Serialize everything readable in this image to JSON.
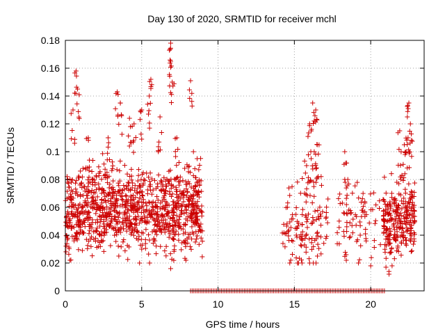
{
  "chart_data": {
    "type": "scatter",
    "title": "Day 130 of 2020, SRMTID for receiver mchl",
    "xlabel": "GPS time / hours",
    "ylabel": "SRMTID / TECUs",
    "xlim": [
      0,
      23.5
    ],
    "ylim": [
      0,
      0.18
    ],
    "x_ticks": [
      0,
      5,
      10,
      15,
      20
    ],
    "x_tick_labels": [
      "0",
      "5",
      "10",
      "15",
      "20"
    ],
    "y_ticks": [
      0,
      0.02,
      0.04,
      0.06,
      0.08,
      0.1,
      0.12,
      0.14,
      0.16,
      0.18
    ],
    "y_tick_labels": [
      "0",
      "0.02",
      "0.04",
      "0.06",
      "0.08",
      "0.1",
      "0.12",
      "0.14",
      "0.16",
      "0.18"
    ],
    "grid": true,
    "marker": "+",
    "marker_color": "#cc0000",
    "series": [
      {
        "name": "SRMTID",
        "segments": [
          {
            "x_range": [
              0.0,
              9.0
            ],
            "samples": 1100,
            "baseline": 0.058,
            "spread": 0.014,
            "spikes": [
              [
                0.7,
                0.158
              ],
              [
                0.5,
                0.13
              ],
              [
                0.8,
                0.145
              ],
              [
                3.4,
                0.143
              ],
              [
                3.6,
                0.135
              ],
              [
                4.2,
                0.124
              ],
              [
                5.0,
                0.13
              ],
              [
                5.6,
                0.152
              ],
              [
                5.5,
                0.14
              ],
              [
                6.2,
                0.125
              ],
              [
                6.9,
                0.178
              ],
              [
                6.9,
                0.165
              ],
              [
                7.0,
                0.15
              ],
              [
                8.2,
                0.151
              ],
              [
                7.3,
                0.11
              ],
              [
                1.5,
                0.11
              ],
              [
                2.8,
                0.11
              ],
              [
                4.5,
                0.12
              ]
            ],
            "lows": [
              [
                0.3,
                0.022
              ],
              [
                3.5,
                0.025
              ],
              [
                6.9,
                0.016
              ],
              [
                7.9,
                0.022
              ],
              [
                5.0,
                0.03
              ]
            ]
          },
          {
            "x_range": [
              14.2,
              17.2
            ],
            "samples": 120,
            "baseline": 0.045,
            "spread": 0.015,
            "spikes": [
              [
                16.2,
                0.135
              ],
              [
                16.4,
                0.13
              ],
              [
                16.0,
                0.12
              ],
              [
                16.5,
                0.105
              ],
              [
                16.3,
                0.1
              ],
              [
                15.8,
                0.09
              ],
              [
                16.1,
                0.095
              ]
            ],
            "lows": [
              [
                14.7,
                0.02
              ],
              [
                15.2,
                0.02
              ],
              [
                15.5,
                0.02
              ],
              [
                16.0,
                0.02
              ]
            ]
          },
          {
            "x_range": [
              17.8,
              21.0
            ],
            "samples": 70,
            "baseline": 0.05,
            "spread": 0.013,
            "spikes": [
              [
                18.3,
                0.1
              ],
              [
                18.5,
                0.08
              ],
              [
                19.5,
                0.07
              ]
            ],
            "lows": [
              [
                18.4,
                0.022
              ],
              [
                19.2,
                0.02
              ],
              [
                20.0,
                0.018
              ],
              [
                21.0,
                0.017
              ]
            ]
          },
          {
            "x_range": [
              20.8,
              22.9
            ],
            "samples": 260,
            "baseline": 0.05,
            "spread": 0.012,
            "spikes": [
              [
                22.5,
                0.135
              ],
              [
                22.4,
                0.125
              ],
              [
                22.6,
                0.12
              ],
              [
                21.9,
                0.115
              ],
              [
                22.2,
                0.105
              ],
              [
                22.5,
                0.1
              ]
            ],
            "lows": [
              [
                21.2,
                0.012
              ],
              [
                21.4,
                0.018
              ]
            ]
          }
        ],
        "zero_range": [
          8.2,
          20.9
        ],
        "zero_samples": 120
      }
    ]
  }
}
